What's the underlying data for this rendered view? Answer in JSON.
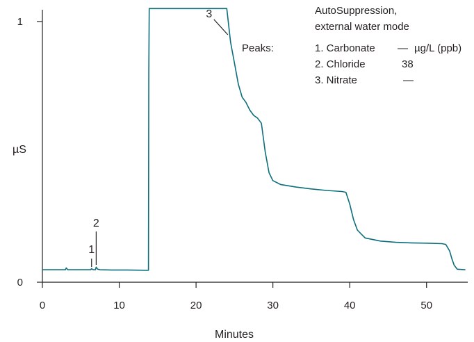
{
  "chart_data": {
    "type": "line",
    "xlabel": "Minutes",
    "ylabel": "µS",
    "xlim": [
      0,
      55
    ],
    "ylim": [
      0,
      1
    ],
    "x_ticks": [
      0,
      10,
      20,
      30,
      40,
      50
    ],
    "y_ticks": [
      0,
      1
    ],
    "trace_color": "#0b6e7a",
    "series": [
      {
        "x": [
          0,
          3,
          3.1,
          3.3,
          5,
          6.3,
          6.4,
          6.6,
          6.9,
          7.0,
          7.2,
          7.5,
          9,
          11,
          13.5,
          13.8,
          13.85,
          13.9,
          24,
          24.5,
          25,
          25.5,
          26,
          26.5,
          27,
          27.5,
          28,
          28.5,
          29,
          29.5,
          30,
          31,
          33,
          35,
          37,
          39,
          39.5,
          40,
          40.5,
          41,
          42,
          44,
          46,
          48,
          50,
          52,
          52.5,
          53,
          53.3,
          53.6,
          54,
          55
        ],
        "y": [
          0.048,
          0.048,
          0.055,
          0.048,
          0.048,
          0.048,
          0.052,
          0.048,
          0.048,
          0.058,
          0.05,
          0.048,
          0.047,
          0.047,
          0.046,
          0.046,
          0.8,
          1.05,
          1.05,
          0.92,
          0.84,
          0.76,
          0.71,
          0.69,
          0.66,
          0.64,
          0.63,
          0.61,
          0.5,
          0.42,
          0.39,
          0.375,
          0.365,
          0.358,
          0.352,
          0.348,
          0.345,
          0.3,
          0.24,
          0.2,
          0.17,
          0.158,
          0.153,
          0.151,
          0.15,
          0.148,
          0.145,
          0.12,
          0.09,
          0.065,
          0.05,
          0.048
        ]
      }
    ],
    "peak_markers": [
      {
        "label": "1",
        "x": 6.4
      },
      {
        "label": "2",
        "x": 7.0
      },
      {
        "label": "3",
        "x": 24.5
      }
    ],
    "annotations": {
      "conditions": [
        "AutoSuppression,",
        "external water mode"
      ],
      "peaks_heading": "Peaks:",
      "units_header": "µg/L (ppb)",
      "peaks": [
        {
          "name": "1. Carbonate",
          "value": "—"
        },
        {
          "name": "2. Chloride",
          "value": "38"
        },
        {
          "name": "3. Nitrate",
          "value": "—"
        }
      ]
    }
  }
}
